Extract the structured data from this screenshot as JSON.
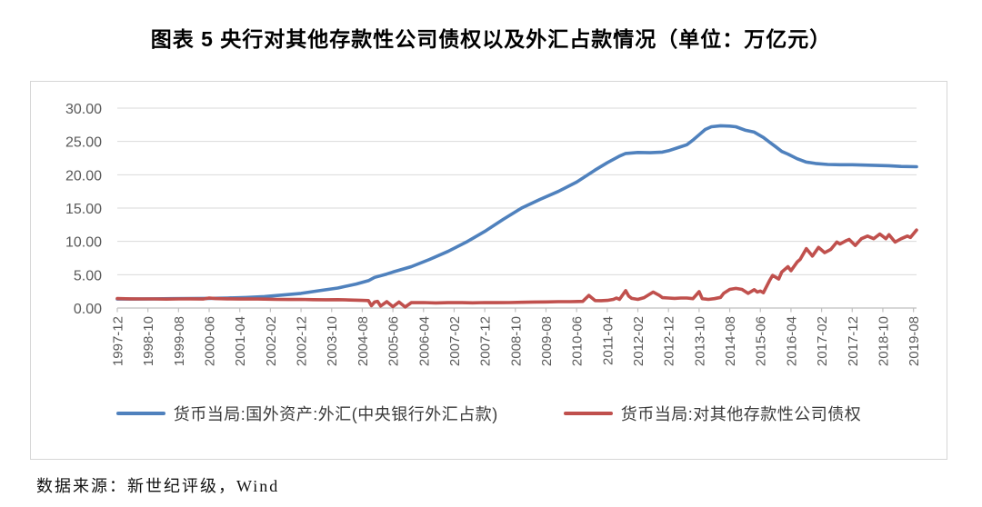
{
  "title": "图表 5  央行对其他存款性公司债权以及外汇占款情况（单位：万亿元）",
  "source_note": "数据来源：新世纪评级，Wind",
  "colors": {
    "series_blue": "#4F81BD",
    "series_red": "#C0504D",
    "gridline": "#d9d9d9",
    "axis": "#bfbfbf",
    "tick_text": "#595959"
  },
  "chart_data": {
    "type": "line",
    "title": "图表 5  央行对其他存款性公司债权以及外汇占款情况（单位：万亿元）",
    "unit": "万亿元",
    "grid": true,
    "legend_position": "bottom",
    "ylim": [
      0,
      30
    ],
    "y_tick_labels": [
      "30.00",
      "25.00",
      "20.00",
      "15.00",
      "10.00",
      "5.00",
      "0.00"
    ],
    "y_tick_values": [
      30,
      25,
      20,
      15,
      10,
      5,
      0
    ],
    "x_tick_labels": [
      "1997-12",
      "1998-10",
      "1999-08",
      "2000-06",
      "2001-04",
      "2002-02",
      "2002-12",
      "2003-10",
      "2004-08",
      "2005-06",
      "2006-04",
      "2007-02",
      "2007-12",
      "2008-10",
      "2009-08",
      "2010-06",
      "2011-04",
      "2012-02",
      "2012-12",
      "2013-10",
      "2014-08",
      "2015-06",
      "2016-04",
      "2017-02",
      "2017-12",
      "2018-10",
      "2019-08"
    ],
    "x_months_per_tick": 10,
    "x_total_months": 261,
    "series": [
      {
        "name": "货币当局:国外资产:外汇(中央银行外汇占款)",
        "color": "#4F81BD",
        "points": [
          [
            0,
            1.35
          ],
          [
            6,
            1.35
          ],
          [
            12,
            1.38
          ],
          [
            18,
            1.4
          ],
          [
            24,
            1.42
          ],
          [
            30,
            1.45
          ],
          [
            36,
            1.5
          ],
          [
            42,
            1.58
          ],
          [
            48,
            1.72
          ],
          [
            54,
            1.95
          ],
          [
            60,
            2.2
          ],
          [
            66,
            2.6
          ],
          [
            72,
            3.0
          ],
          [
            78,
            3.6
          ],
          [
            82,
            4.1
          ],
          [
            84,
            4.6
          ],
          [
            88,
            5.1
          ],
          [
            90,
            5.4
          ],
          [
            96,
            6.2
          ],
          [
            102,
            7.3
          ],
          [
            108,
            8.5
          ],
          [
            114,
            9.9
          ],
          [
            120,
            11.5
          ],
          [
            126,
            13.3
          ],
          [
            132,
            15.0
          ],
          [
            138,
            16.3
          ],
          [
            144,
            17.5
          ],
          [
            150,
            18.9
          ],
          [
            156,
            20.7
          ],
          [
            160,
            21.8
          ],
          [
            164,
            22.8
          ],
          [
            166,
            23.2
          ],
          [
            170,
            23.35
          ],
          [
            174,
            23.3
          ],
          [
            178,
            23.4
          ],
          [
            180,
            23.6
          ],
          [
            184,
            24.2
          ],
          [
            186,
            24.5
          ],
          [
            188,
            25.2
          ],
          [
            190,
            26.0
          ],
          [
            192,
            26.8
          ],
          [
            194,
            27.2
          ],
          [
            197,
            27.35
          ],
          [
            200,
            27.3
          ],
          [
            202,
            27.2
          ],
          [
            205,
            26.7
          ],
          [
            208,
            26.4
          ],
          [
            211,
            25.6
          ],
          [
            213,
            24.9
          ],
          [
            215,
            24.2
          ],
          [
            217,
            23.5
          ],
          [
            219,
            23.1
          ],
          [
            222,
            22.4
          ],
          [
            225,
            21.9
          ],
          [
            228,
            21.7
          ],
          [
            232,
            21.55
          ],
          [
            236,
            21.5
          ],
          [
            240,
            21.5
          ],
          [
            244,
            21.45
          ],
          [
            248,
            21.4
          ],
          [
            252,
            21.35
          ],
          [
            256,
            21.25
          ],
          [
            261,
            21.2
          ]
        ]
      },
      {
        "name": "货币当局:对其他存款性公司债权",
        "color": "#C0504D",
        "points": [
          [
            0,
            1.42
          ],
          [
            4,
            1.38
          ],
          [
            8,
            1.36
          ],
          [
            12,
            1.36
          ],
          [
            16,
            1.34
          ],
          [
            20,
            1.36
          ],
          [
            24,
            1.38
          ],
          [
            28,
            1.35
          ],
          [
            30,
            1.5
          ],
          [
            32,
            1.42
          ],
          [
            36,
            1.38
          ],
          [
            40,
            1.35
          ],
          [
            44,
            1.36
          ],
          [
            48,
            1.33
          ],
          [
            52,
            1.3
          ],
          [
            56,
            1.28
          ],
          [
            60,
            1.3
          ],
          [
            64,
            1.26
          ],
          [
            68,
            1.24
          ],
          [
            72,
            1.25
          ],
          [
            76,
            1.2
          ],
          [
            80,
            1.15
          ],
          [
            82,
            1.12
          ],
          [
            83,
            0.35
          ],
          [
            84,
            0.9
          ],
          [
            85,
            1.0
          ],
          [
            86,
            0.3
          ],
          [
            88,
            0.95
          ],
          [
            90,
            0.2
          ],
          [
            92,
            0.9
          ],
          [
            94,
            0.15
          ],
          [
            96,
            0.8
          ],
          [
            100,
            0.82
          ],
          [
            104,
            0.76
          ],
          [
            108,
            0.8
          ],
          [
            112,
            0.82
          ],
          [
            116,
            0.78
          ],
          [
            120,
            0.82
          ],
          [
            124,
            0.8
          ],
          [
            128,
            0.82
          ],
          [
            132,
            0.86
          ],
          [
            136,
            0.9
          ],
          [
            140,
            0.92
          ],
          [
            144,
            0.95
          ],
          [
            148,
            0.96
          ],
          [
            152,
            1.0
          ],
          [
            154,
            1.9
          ],
          [
            156,
            1.12
          ],
          [
            158,
            1.1
          ],
          [
            160,
            1.15
          ],
          [
            162,
            1.3
          ],
          [
            163,
            1.5
          ],
          [
            164,
            1.3
          ],
          [
            166,
            2.6
          ],
          [
            167,
            1.8
          ],
          [
            168,
            1.45
          ],
          [
            170,
            1.3
          ],
          [
            172,
            1.55
          ],
          [
            175,
            2.4
          ],
          [
            177,
            1.9
          ],
          [
            178,
            1.55
          ],
          [
            180,
            1.5
          ],
          [
            182,
            1.45
          ],
          [
            184,
            1.5
          ],
          [
            186,
            1.5
          ],
          [
            188,
            1.4
          ],
          [
            190,
            2.45
          ],
          [
            191,
            1.4
          ],
          [
            193,
            1.3
          ],
          [
            195,
            1.4
          ],
          [
            197,
            1.6
          ],
          [
            198,
            2.2
          ],
          [
            200,
            2.8
          ],
          [
            202,
            2.95
          ],
          [
            204,
            2.8
          ],
          [
            206,
            2.2
          ],
          [
            208,
            2.75
          ],
          [
            209,
            2.4
          ],
          [
            210,
            2.55
          ],
          [
            211,
            2.3
          ],
          [
            213,
            4.1
          ],
          [
            214,
            4.9
          ],
          [
            216,
            4.35
          ],
          [
            217,
            5.4
          ],
          [
            219,
            6.2
          ],
          [
            220,
            5.6
          ],
          [
            222,
            6.9
          ],
          [
            223,
            7.3
          ],
          [
            225,
            8.9
          ],
          [
            227,
            7.8
          ],
          [
            229,
            9.1
          ],
          [
            231,
            8.3
          ],
          [
            233,
            8.8
          ],
          [
            235,
            9.9
          ],
          [
            236,
            9.6
          ],
          [
            238,
            10.1
          ],
          [
            239,
            10.3
          ],
          [
            241,
            9.4
          ],
          [
            243,
            10.4
          ],
          [
            245,
            10.8
          ],
          [
            247,
            10.4
          ],
          [
            249,
            11.1
          ],
          [
            251,
            10.4
          ],
          [
            252,
            11.0
          ],
          [
            254,
            9.9
          ],
          [
            256,
            10.4
          ],
          [
            258,
            10.8
          ],
          [
            259,
            10.6
          ],
          [
            261,
            11.7
          ]
        ]
      }
    ]
  }
}
